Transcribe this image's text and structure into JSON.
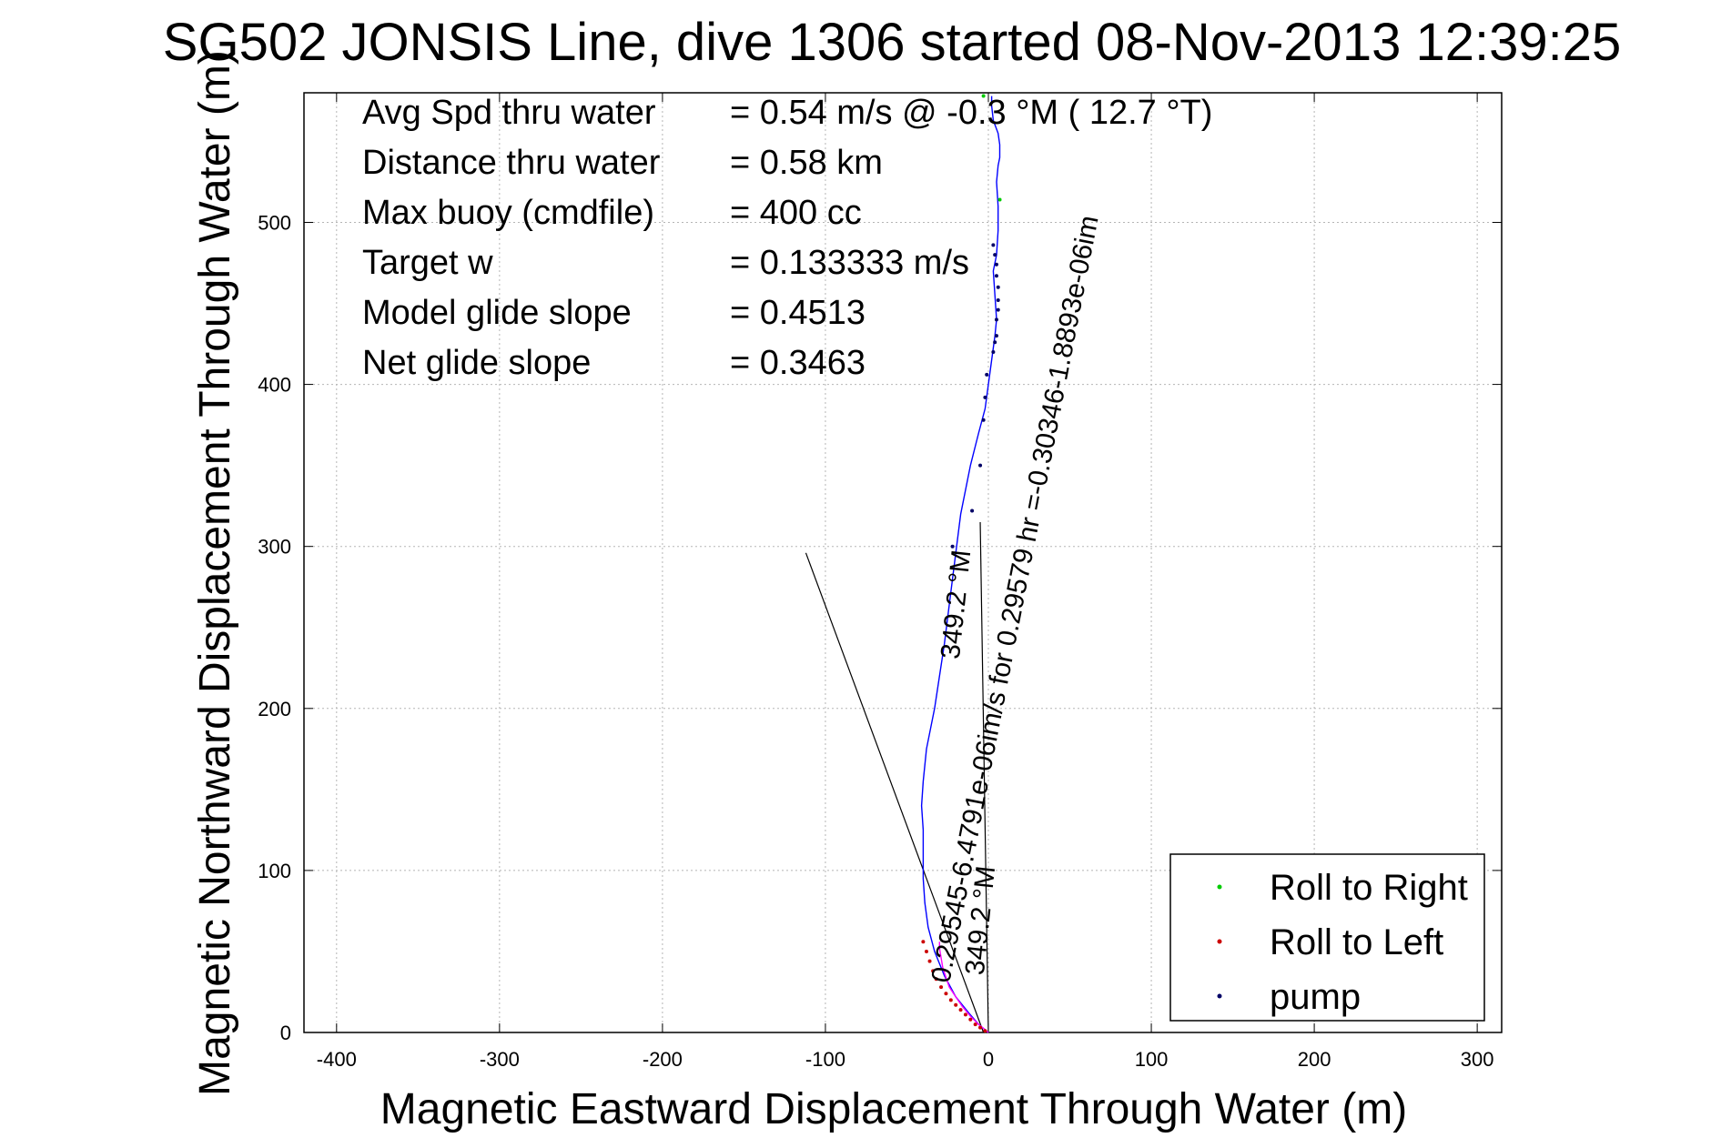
{
  "chart_data": {
    "type": "line",
    "title": "SG502 JONSIS Line, dive 1306 started 08-Nov-2013 12:39:25",
    "xlabel": "Magnetic Eastward Displacement Through Water (m)",
    "ylabel": "Magnetic Northward Displacement Through Water (m)",
    "xlim": [
      -420,
      315
    ],
    "ylim": [
      0,
      580
    ],
    "xticks": [
      -400,
      -300,
      -200,
      -100,
      0,
      100,
      200,
      300
    ],
    "yticks": [
      0,
      100,
      200,
      300,
      400,
      500
    ],
    "grid": true,
    "legend_position": "bottom-right",
    "legend": [
      {
        "label": "Roll to Right",
        "color": "#00cc00"
      },
      {
        "label": "Roll to Left",
        "color": "#cc0000"
      },
      {
        "label": "pump",
        "color": "#000066"
      }
    ],
    "stats": [
      {
        "label": "Avg Spd thru water",
        "value": "=  0.54 m/s @  -0.3 °M ( 12.7 °T)"
      },
      {
        "label": "Distance thru water",
        "value": "=  0.58 km"
      },
      {
        "label": "Max buoy (cmdfile)",
        "value": "= 400 cc"
      },
      {
        "label": "Target w",
        "value": "= 0.133333 m/s"
      },
      {
        "label": "Model glide slope",
        "value": "= 0.4513"
      },
      {
        "label": "Net glide slope",
        "value": "= 0.3463"
      }
    ],
    "annotations": [
      {
        "text": "0.29545-6.4791e-06im/s for 0.29579 hr =-0.30346-1.8893e-06im",
        "x": -24,
        "y": 30,
        "angle_deg": -79
      },
      {
        "text": "349.2 °M",
        "x": -3,
        "y": 35,
        "angle_deg": -84
      },
      {
        "text": "349.2 °M",
        "x": -18,
        "y": 230,
        "angle_deg": -84
      }
    ],
    "series": [
      {
        "name": "Roll to Right",
        "color": "#0000ff",
        "x": [
          0,
          -6,
          -12,
          -20,
          -27,
          -33,
          -37,
          -39,
          -40,
          -40,
          -40,
          -41,
          -40,
          -38,
          -33,
          -27,
          -22,
          -17,
          -11,
          -6,
          -2,
          0,
          2,
          4,
          5,
          4,
          3,
          5,
          6,
          6,
          5,
          6,
          7,
          7,
          6,
          3,
          2,
          2
        ],
        "y": [
          0,
          5,
          12,
          22,
          35,
          50,
          65,
          80,
          95,
          110,
          125,
          140,
          155,
          175,
          200,
          240,
          280,
          320,
          350,
          370,
          385,
          400,
          415,
          430,
          440,
          455,
          470,
          480,
          495,
          510,
          525,
          535,
          540,
          548,
          555,
          563,
          572,
          578
        ]
      },
      {
        "name": "Roll to Left",
        "color": "#ff00ff",
        "x": [
          0,
          -6,
          -11,
          -16,
          -20,
          -24,
          -26,
          -28,
          -29,
          -30,
          -30
        ],
        "y": [
          0,
          5,
          10,
          16,
          22,
          28,
          34,
          40,
          46,
          52,
          56
        ]
      }
    ],
    "markers": [
      {
        "name": "Roll to Left",
        "color": "#cc0000",
        "x": [
          -2,
          -5,
          -8,
          -11,
          -14,
          -17,
          -20,
          -23,
          -26,
          -29,
          -32,
          -34,
          -36,
          -38,
          -40
        ],
        "y": [
          1,
          3,
          5,
          8,
          11,
          14,
          17,
          20,
          24,
          28,
          33,
          38,
          44,
          50,
          56
        ]
      },
      {
        "name": "Roll to Right",
        "color": "#00cc00",
        "x": [
          -3,
          7
        ],
        "y": [
          578,
          514
        ]
      },
      {
        "name": "pump",
        "color": "#000066",
        "x": [
          -1,
          -2,
          -3,
          3,
          4,
          5,
          5,
          6,
          6,
          6,
          5,
          5,
          4,
          3,
          -5,
          -10,
          -22
        ],
        "y": [
          406,
          392,
          378,
          420,
          426,
          430,
          440,
          446,
          452,
          460,
          467,
          474,
          480,
          486,
          350,
          322,
          300
        ]
      }
    ],
    "reference_lines": [
      {
        "name": "current",
        "color": "#000000",
        "x": [
          -112,
          -3
        ],
        "y": [
          296,
          0
        ]
      },
      {
        "name": "heading",
        "color": "#000000",
        "x": [
          -5,
          0
        ],
        "y": [
          315,
          0
        ]
      }
    ]
  }
}
